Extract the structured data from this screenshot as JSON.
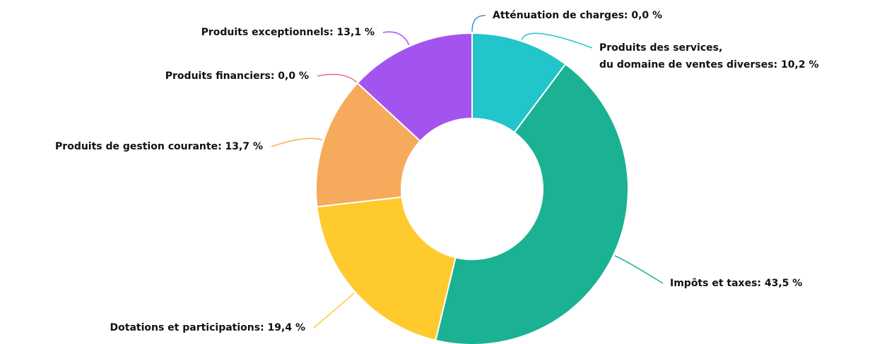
{
  "chart_data": {
    "type": "donut",
    "values": [
      0.0,
      10.2,
      43.5,
      19.4,
      13.7,
      0.0,
      13.1
    ],
    "value_labels": [
      [
        "Atténuation de charges: 0,0 %"
      ],
      [
        "Produits des services,",
        "du domaine de ventes diverses: 10,2 %"
      ],
      [
        "Impôts et taxes: 43,5 %"
      ],
      [
        "Dotations et participations: 19,4 %"
      ],
      [
        "Produits de gestion courante: 13,7 %"
      ],
      [
        "Produits financiers: 0,0 %"
      ],
      [
        "Produits exceptionnels: 13,1 %"
      ]
    ],
    "colors": [
      "#3f8fc4",
      "#22c5c9",
      "#1bb193",
      "#ffca2e",
      "#f6aa5b",
      "#f06b7c",
      "#a354ef"
    ]
  }
}
